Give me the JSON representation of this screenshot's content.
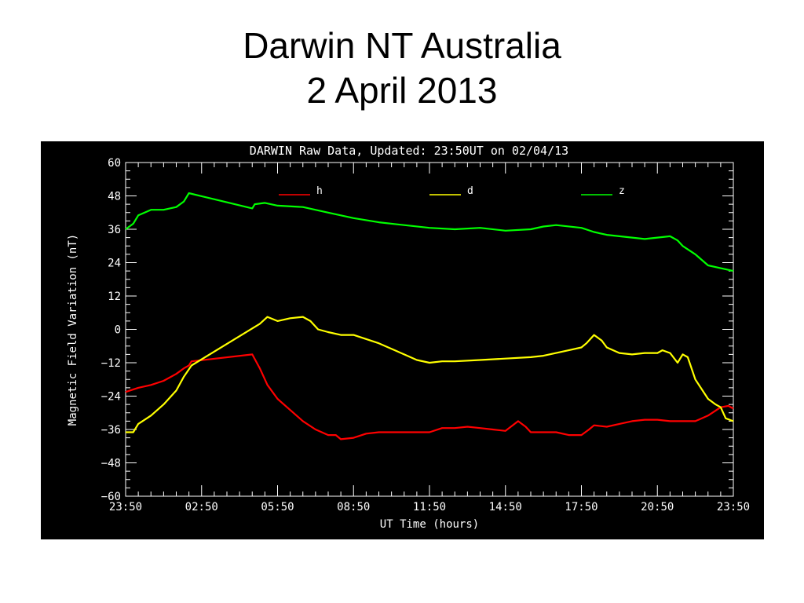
{
  "slide": {
    "title_line1": "Darwin NT Australia",
    "title_line2": "2 April 2013"
  },
  "chart_data": {
    "type": "line",
    "title": "DARWIN Raw Data, Updated: 23:50UT on 02/04/13",
    "xlabel": "UT Time (hours)",
    "ylabel": "Magnetic Field Variation (nT)",
    "xlim": [
      0,
      24
    ],
    "ylim": [
      -60,
      60
    ],
    "x_tick_labels": [
      "23:50",
      "02:50",
      "05:50",
      "08:50",
      "11:50",
      "14:50",
      "17:50",
      "20:50",
      "23:50"
    ],
    "y_ticks": [
      60,
      48,
      36,
      24,
      12,
      0,
      -12,
      -24,
      -36,
      -48,
      -60
    ],
    "y_tick_labels": [
      "60",
      "48",
      "36",
      "24",
      "12",
      "0",
      "−12",
      "−24",
      "−36",
      "−48",
      "−60"
    ],
    "legend_position": "top",
    "x_unit_note": "x values are hours elapsed since 23:50 UT",
    "series": [
      {
        "name": "h",
        "color": "#ff0000",
        "points": [
          [
            0,
            -22.5
          ],
          [
            0.5,
            -21
          ],
          [
            1,
            -20
          ],
          [
            1.5,
            -18.5
          ],
          [
            2,
            -16
          ],
          [
            2.3,
            -14
          ],
          [
            2.5,
            -13
          ],
          [
            2.6,
            -11.5
          ],
          [
            5,
            -9
          ],
          [
            5.3,
            -14
          ],
          [
            5.6,
            -20
          ],
          [
            6,
            -25
          ],
          [
            6.5,
            -29
          ],
          [
            7,
            -33
          ],
          [
            7.5,
            -36
          ],
          [
            8,
            -38
          ],
          [
            8.3,
            -38
          ],
          [
            8.5,
            -39.5
          ],
          [
            9,
            -39
          ],
          [
            9.5,
            -37.5
          ],
          [
            10,
            -37
          ],
          [
            11,
            -37
          ],
          [
            12,
            -37
          ],
          [
            12.5,
            -35.5
          ],
          [
            13,
            -35.5
          ],
          [
            13.5,
            -35
          ],
          [
            14,
            -35.5
          ],
          [
            14.5,
            -36
          ],
          [
            15,
            -36.5
          ],
          [
            15.5,
            -33
          ],
          [
            15.8,
            -35
          ],
          [
            16,
            -37
          ],
          [
            16.5,
            -37
          ],
          [
            17,
            -37
          ],
          [
            17.5,
            -38
          ],
          [
            18,
            -38
          ],
          [
            18.3,
            -36
          ],
          [
            18.5,
            -34.5
          ],
          [
            19,
            -35
          ],
          [
            19.5,
            -34
          ],
          [
            20,
            -33
          ],
          [
            20.5,
            -32.5
          ],
          [
            21,
            -32.5
          ],
          [
            21.5,
            -33
          ],
          [
            22.5,
            -33
          ],
          [
            23,
            -31
          ],
          [
            23.5,
            -28
          ],
          [
            23.8,
            -27.5
          ],
          [
            24,
            -28.5
          ]
        ]
      },
      {
        "name": "d",
        "color": "#ffff00",
        "points": [
          [
            0,
            -37
          ],
          [
            0.3,
            -37
          ],
          [
            0.5,
            -34
          ],
          [
            1,
            -31
          ],
          [
            1.5,
            -27
          ],
          [
            2,
            -22
          ],
          [
            2.3,
            -17
          ],
          [
            2.6,
            -13
          ],
          [
            5.3,
            2
          ],
          [
            5.6,
            4.5
          ],
          [
            6,
            3
          ],
          [
            6.5,
            4
          ],
          [
            7,
            4.5
          ],
          [
            7.3,
            3
          ],
          [
            7.6,
            0
          ],
          [
            8,
            -1
          ],
          [
            8.5,
            -2
          ],
          [
            9,
            -2
          ],
          [
            10,
            -5
          ],
          [
            11,
            -9
          ],
          [
            11.5,
            -11
          ],
          [
            12,
            -12
          ],
          [
            12.5,
            -11.5
          ],
          [
            13,
            -11.5
          ],
          [
            14,
            -11
          ],
          [
            15,
            -10.5
          ],
          [
            16,
            -10
          ],
          [
            16.5,
            -9.5
          ],
          [
            17,
            -8.5
          ],
          [
            17.5,
            -7.5
          ],
          [
            18,
            -6.5
          ],
          [
            18.2,
            -5
          ],
          [
            18.5,
            -2
          ],
          [
            18.8,
            -4
          ],
          [
            19,
            -6.5
          ],
          [
            19.5,
            -8.5
          ],
          [
            20,
            -9
          ],
          [
            20.5,
            -8.5
          ],
          [
            21,
            -8.5
          ],
          [
            21.2,
            -7.5
          ],
          [
            21.5,
            -8.5
          ],
          [
            21.8,
            -12
          ],
          [
            22,
            -9
          ],
          [
            22.2,
            -10
          ],
          [
            22.5,
            -18
          ],
          [
            23,
            -25
          ],
          [
            23.3,
            -27
          ],
          [
            23.5,
            -28
          ],
          [
            23.7,
            -32
          ],
          [
            24,
            -33
          ]
        ]
      },
      {
        "name": "z",
        "color": "#00ff00",
        "points": [
          [
            0,
            36
          ],
          [
            0.3,
            38
          ],
          [
            0.5,
            41
          ],
          [
            1,
            43
          ],
          [
            1.5,
            43
          ],
          [
            2,
            44
          ],
          [
            2.3,
            46
          ],
          [
            2.5,
            49
          ],
          [
            5,
            43.5
          ],
          [
            5.1,
            45
          ],
          [
            5.5,
            45.5
          ],
          [
            6,
            44.5
          ],
          [
            7,
            44
          ],
          [
            8,
            42
          ],
          [
            9,
            40
          ],
          [
            10,
            38.5
          ],
          [
            11,
            37.5
          ],
          [
            12,
            36.5
          ],
          [
            13,
            36
          ],
          [
            14,
            36.5
          ],
          [
            15,
            35.5
          ],
          [
            16,
            36
          ],
          [
            16.5,
            37
          ],
          [
            17,
            37.5
          ],
          [
            18,
            36.5
          ],
          [
            18.5,
            35
          ],
          [
            19,
            34
          ],
          [
            20,
            33
          ],
          [
            20.5,
            32.5
          ],
          [
            21,
            33
          ],
          [
            21.5,
            33.5
          ],
          [
            21.8,
            32
          ],
          [
            22,
            30
          ],
          [
            22.5,
            27
          ],
          [
            23,
            23
          ],
          [
            23.5,
            22
          ],
          [
            24,
            21
          ]
        ]
      }
    ]
  }
}
